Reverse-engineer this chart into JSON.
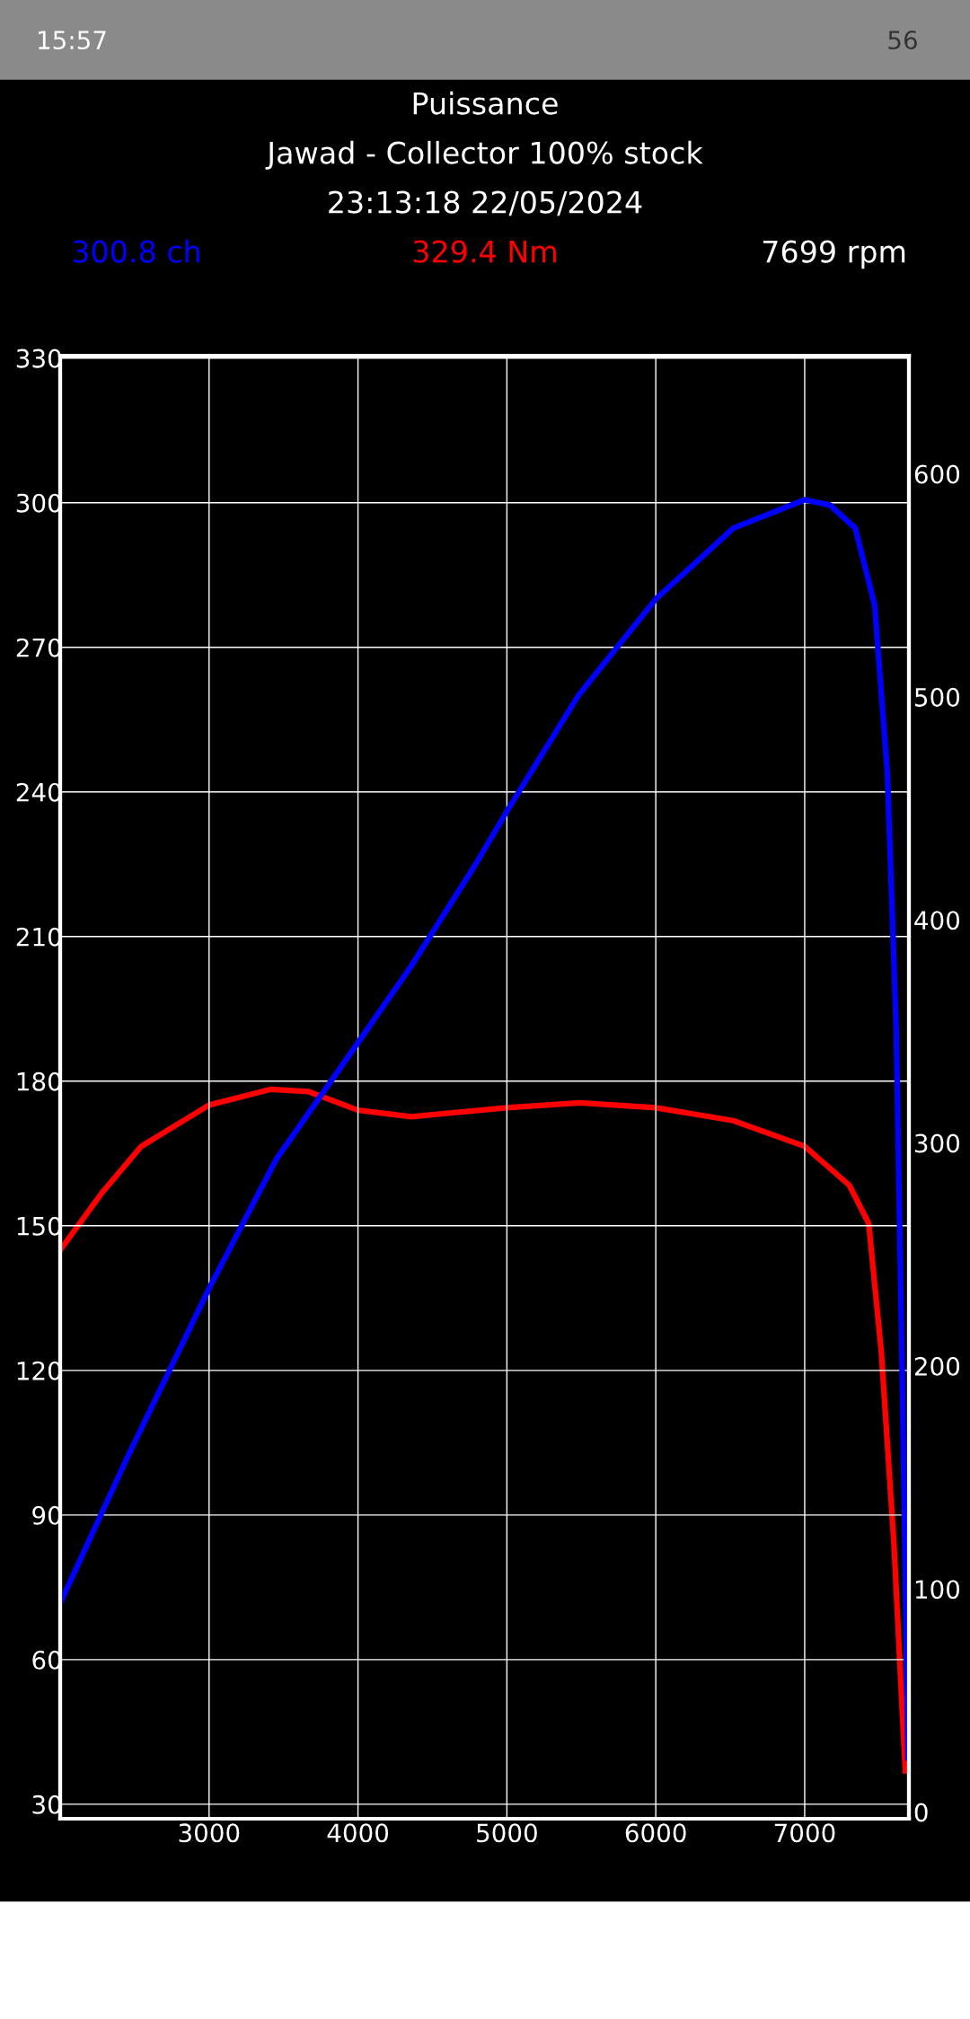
{
  "chart_data": {
    "type": "line",
    "title": "Puissance",
    "subtitle": "Jawad - Collector 100% stock",
    "annotations": [
      "300.8 ch",
      "329.4 Nm",
      "7699 rpm",
      "23:13:18 22/05/2024",
      "15:57",
      "56"
    ],
    "series": [
      {
        "name": null,
        "color": "#0000ff",
        "x": [
          2000,
          2458,
          3000,
          3451,
          4000,
          4360,
          4790,
          5000,
          5480,
          6000,
          6520,
          7000,
          7170,
          7340,
          7470,
          7555,
          7615,
          7660,
          7693
        ],
        "values": [
          71.7,
          102.4,
          137,
          163.8,
          188,
          204,
          225,
          236,
          260,
          280,
          294.7,
          300.6,
          299.5,
          294.7,
          278.7,
          244,
          190.6,
          110,
          39.6
        ]
      },
      {
        "name": null,
        "color": "#ff0000",
        "axis": "y2",
        "x": [
          2000,
          2285,
          2545,
          3000,
          3410,
          3670,
          4000,
          4360,
          5000,
          5490,
          6000,
          6520,
          7000,
          7300,
          7430,
          7515,
          7600,
          7660,
          7676
        ],
        "values": [
          252,
          278,
          298.5,
          317,
          324,
          323,
          314.7,
          311.8,
          315.8,
          318,
          315.8,
          310,
          298.5,
          281,
          263.9,
          206,
          119.5,
          38.7,
          18.5
        ]
      }
    ],
    "xlim": [
      2000,
      7700
    ],
    "xticks": [
      3000,
      4000,
      5000,
      6000,
      7000
    ],
    "ylim": [
      27,
      330.5
    ],
    "yticks": [
      30,
      60,
      90,
      120,
      150,
      180,
      210,
      240,
      270,
      300,
      330
    ],
    "y2lim": [
      -3,
      653
    ],
    "y2ticks": [
      0,
      100,
      200,
      300,
      400,
      500,
      600
    ],
    "grid": true,
    "line_style": "solid",
    "marker": "none",
    "legend": false
  }
}
